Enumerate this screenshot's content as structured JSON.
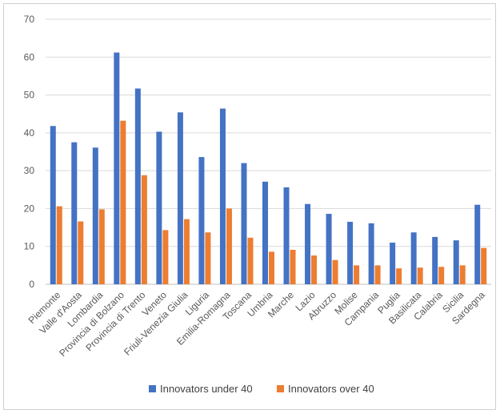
{
  "chart_data": {
    "type": "bar",
    "categories": [
      "Piemonte",
      "Valle d'Aosta",
      "Lombardia",
      "Provincia di Bolzano",
      "Provincia di Trento",
      "Veneto",
      "Friuli-Venezia Giulia",
      "Liguria",
      "Emilia-Romagna",
      "Toscana",
      "Umbria",
      "Marche",
      "Lazio",
      "Abruzzo",
      "Molise",
      "Campania",
      "Puglia",
      "Basilicata",
      "Calabria",
      "Sicilia",
      "Sardegna"
    ],
    "series": [
      {
        "name": "Innovators under 40",
        "color": "#4472c4",
        "values": [
          41.8,
          37.5,
          36.1,
          61.2,
          51.7,
          40.3,
          45.4,
          33.6,
          46.4,
          32.0,
          27.1,
          25.6,
          21.2,
          18.6,
          16.5,
          16.1,
          11.0,
          13.7,
          12.5,
          11.6,
          21.0
        ]
      },
      {
        "name": "Innovators over 40",
        "color": "#ed7d31",
        "values": [
          20.6,
          16.6,
          19.8,
          43.2,
          28.8,
          14.3,
          17.2,
          13.7,
          20.0,
          12.3,
          8.6,
          9.1,
          7.6,
          6.4,
          5.0,
          5.0,
          4.2,
          4.4,
          4.6,
          5.0,
          9.6
        ]
      }
    ],
    "yticks": [
      "0",
      "10",
      "20",
      "30",
      "40",
      "50",
      "60",
      "70"
    ],
    "ylim": [
      0,
      70
    ],
    "grid": true,
    "legend_position": "bottom",
    "title": "",
    "xlabel": "",
    "ylabel": ""
  }
}
